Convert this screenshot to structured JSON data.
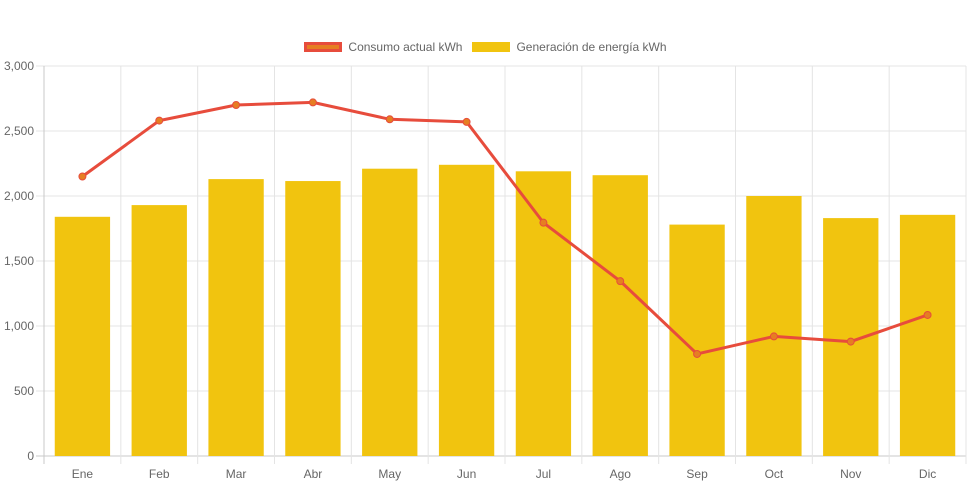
{
  "chart_data": {
    "type": "bar",
    "title": "",
    "xlabel": "",
    "ylabel": "",
    "ylim": [
      0,
      3000
    ],
    "yticks": [
      "0",
      "500",
      "1,000",
      "1,500",
      "2,000",
      "2,500",
      "3,000"
    ],
    "ytick_values": [
      0,
      500,
      1000,
      1500,
      2000,
      2500,
      3000
    ],
    "grid": true,
    "legend_position": "top-center",
    "categories": [
      "Ene",
      "Feb",
      "Mar",
      "Abr",
      "May",
      "Jun",
      "Jul",
      "Ago",
      "Sep",
      "Oct",
      "Nov",
      "Dic"
    ],
    "series": [
      {
        "name": "Consumo actual kWh",
        "type": "line",
        "color": "#e74c3c",
        "point_color": "#e67e22",
        "values": [
          2150,
          2580,
          2700,
          2720,
          2590,
          2570,
          1795,
          1345,
          785,
          920,
          880,
          1085
        ]
      },
      {
        "name": "Generación de energía kWh",
        "type": "bar",
        "color": "#f1c40f",
        "values": [
          1840,
          1930,
          2130,
          2115,
          2210,
          2240,
          2190,
          2160,
          1780,
          2000,
          1830,
          1855
        ]
      }
    ]
  }
}
